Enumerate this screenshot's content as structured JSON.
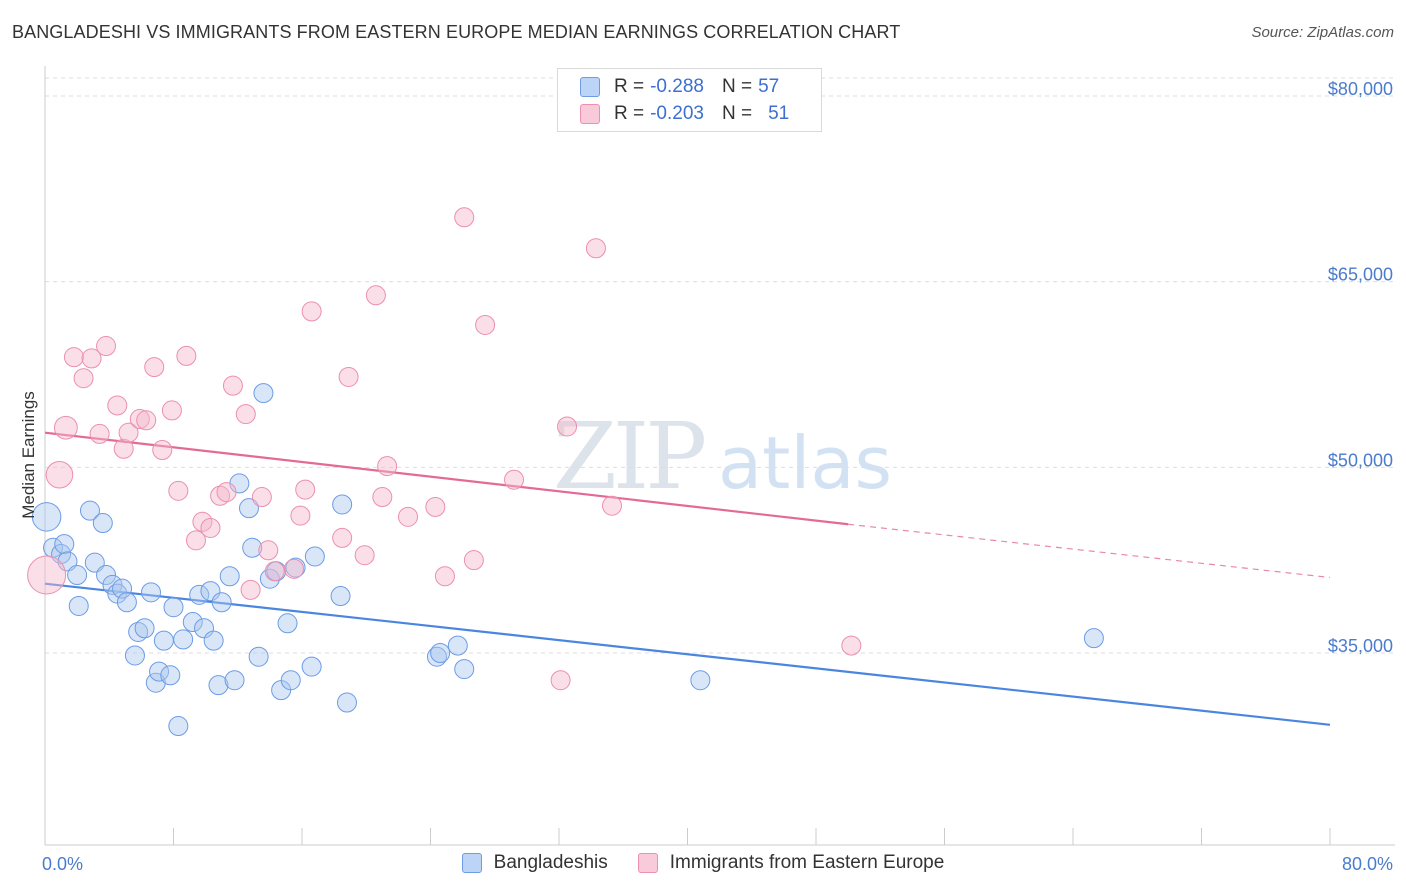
{
  "title": "BANGLADESHI VS IMMIGRANTS FROM EASTERN EUROPE MEDIAN EARNINGS CORRELATION CHART",
  "source": "Source: ZipAtlas.com",
  "watermark": {
    "bold": "ZIP",
    "light": "atlas"
  },
  "legend": {
    "row1": {
      "r_label": "R = ",
      "r_value": "-0.288",
      "n_label": "N = ",
      "n_value": "57"
    },
    "row2": {
      "r_label": "R = ",
      "r_value": "-0.203",
      "n_label": "N = ",
      "n_value": "51"
    }
  },
  "colors": {
    "blue": "#4a86e0",
    "blue_fill": "#aac8f0",
    "pink": "#e36a96",
    "pink_fill": "#f5b8cc",
    "axis_text": "#4a7ccc"
  },
  "chart_data": {
    "type": "scatter",
    "ylabel": "Median Earnings",
    "xlim": [
      0,
      80
    ],
    "ylim": [
      18000,
      82000
    ],
    "x_tick_labels": [
      "0.0%",
      "80.0%"
    ],
    "y_ticks": [
      {
        "value": 35000,
        "label": "$35,000"
      },
      {
        "value": 50000,
        "label": "$50,000"
      },
      {
        "value": 65000,
        "label": "$65,000"
      },
      {
        "value": 80000,
        "label": "$80,000"
      }
    ],
    "grid": "horizontal dashed",
    "legend_position": "top-center",
    "series": [
      {
        "name": "Bangladeshis",
        "color": "#4a86e0",
        "trend": {
          "x": [
            0,
            80
          ],
          "y": [
            40600,
            29200
          ]
        },
        "points": [
          [
            0.1,
            46000,
            1.5
          ],
          [
            0.5,
            43500,
            1
          ],
          [
            1.0,
            43000,
            1
          ],
          [
            1.2,
            43800,
            1
          ],
          [
            1.4,
            42400,
            1
          ],
          [
            2.0,
            41300,
            1
          ],
          [
            2.1,
            38800,
            1
          ],
          [
            2.8,
            46500,
            1
          ],
          [
            3.1,
            42300,
            1
          ],
          [
            3.6,
            45500,
            1
          ],
          [
            3.8,
            41300,
            1
          ],
          [
            4.2,
            40500,
            1
          ],
          [
            4.5,
            39800,
            1
          ],
          [
            4.8,
            40200,
            1
          ],
          [
            5.1,
            39100,
            1
          ],
          [
            5.6,
            34800,
            1
          ],
          [
            5.8,
            36700,
            1
          ],
          [
            6.2,
            37000,
            1
          ],
          [
            6.6,
            39900,
            1
          ],
          [
            6.9,
            32600,
            1
          ],
          [
            7.1,
            33500,
            1
          ],
          [
            7.4,
            36000,
            1
          ],
          [
            7.8,
            33200,
            1
          ],
          [
            8.0,
            38700,
            1
          ],
          [
            8.3,
            29100,
            1
          ],
          [
            8.6,
            36100,
            1
          ],
          [
            9.2,
            37500,
            1
          ],
          [
            9.6,
            39700,
            1
          ],
          [
            9.9,
            37000,
            1
          ],
          [
            10.3,
            40000,
            1
          ],
          [
            10.5,
            36000,
            1
          ],
          [
            10.8,
            32400,
            1
          ],
          [
            11.0,
            39100,
            1
          ],
          [
            11.5,
            41200,
            1
          ],
          [
            11.8,
            32800,
            1
          ],
          [
            12.1,
            48700,
            1
          ],
          [
            12.7,
            46700,
            1
          ],
          [
            12.9,
            43500,
            1
          ],
          [
            13.3,
            34700,
            1
          ],
          [
            13.6,
            56000,
            1
          ],
          [
            14.0,
            41000,
            1
          ],
          [
            14.4,
            41600,
            1
          ],
          [
            14.7,
            32000,
            1
          ],
          [
            15.1,
            37400,
            1
          ],
          [
            15.3,
            32800,
            1
          ],
          [
            15.6,
            41900,
            1
          ],
          [
            16.6,
            33900,
            1
          ],
          [
            16.8,
            42800,
            1
          ],
          [
            18.4,
            39600,
            1
          ],
          [
            18.5,
            47000,
            1
          ],
          [
            18.8,
            31000,
            1
          ],
          [
            24.4,
            34700,
            1
          ],
          [
            24.6,
            35000,
            1
          ],
          [
            25.7,
            35600,
            1
          ],
          [
            26.1,
            33700,
            1
          ],
          [
            40.8,
            32800,
            1
          ],
          [
            65.3,
            36200,
            1
          ]
        ]
      },
      {
        "name": "Immigrants from Eastern Europe",
        "color": "#e36a96",
        "trend": {
          "x": [
            0,
            50
          ],
          "y": [
            52800,
            45400
          ]
        },
        "trend_dashed": {
          "x": [
            50,
            80
          ],
          "y": [
            45400,
            41100
          ]
        },
        "points": [
          [
            0.1,
            41300,
            2
          ],
          [
            0.9,
            49400,
            1.4
          ],
          [
            1.3,
            53200,
            1.2
          ],
          [
            1.8,
            58900,
            1
          ],
          [
            2.4,
            57200,
            1
          ],
          [
            2.9,
            58800,
            1
          ],
          [
            3.4,
            52700,
            1
          ],
          [
            3.8,
            59800,
            1
          ],
          [
            4.5,
            55000,
            1
          ],
          [
            4.9,
            51500,
            1
          ],
          [
            5.2,
            52800,
            1
          ],
          [
            5.9,
            53900,
            1
          ],
          [
            6.3,
            53800,
            1
          ],
          [
            6.8,
            58100,
            1
          ],
          [
            7.3,
            51400,
            1
          ],
          [
            7.9,
            54600,
            1
          ],
          [
            8.3,
            48100,
            1
          ],
          [
            8.8,
            59000,
            1
          ],
          [
            9.4,
            44100,
            1
          ],
          [
            9.8,
            45600,
            1
          ],
          [
            10.3,
            45100,
            1
          ],
          [
            10.9,
            47700,
            1
          ],
          [
            11.3,
            48000,
            1
          ],
          [
            11.7,
            56600,
            1
          ],
          [
            12.5,
            54300,
            1
          ],
          [
            12.8,
            40100,
            1
          ],
          [
            13.5,
            47600,
            1
          ],
          [
            13.9,
            43300,
            1
          ],
          [
            14.3,
            41600,
            1
          ],
          [
            15.5,
            41800,
            1
          ],
          [
            15.9,
            46100,
            1
          ],
          [
            16.2,
            48200,
            1
          ],
          [
            16.6,
            62600,
            1
          ],
          [
            18.5,
            44300,
            1
          ],
          [
            18.9,
            57300,
            1
          ],
          [
            19.9,
            42900,
            1
          ],
          [
            20.6,
            63900,
            1
          ],
          [
            21.0,
            47600,
            1
          ],
          [
            21.3,
            50100,
            1
          ],
          [
            22.6,
            46000,
            1
          ],
          [
            24.3,
            46800,
            1
          ],
          [
            24.9,
            41200,
            1
          ],
          [
            26.1,
            70200,
            1
          ],
          [
            26.7,
            42500,
            1
          ],
          [
            27.4,
            61500,
            1
          ],
          [
            29.2,
            49000,
            1
          ],
          [
            32.1,
            32800,
            1
          ],
          [
            32.5,
            53300,
            1
          ],
          [
            34.3,
            67700,
            1
          ],
          [
            35.3,
            46900,
            1
          ],
          [
            50.2,
            35600,
            1
          ]
        ]
      }
    ]
  }
}
